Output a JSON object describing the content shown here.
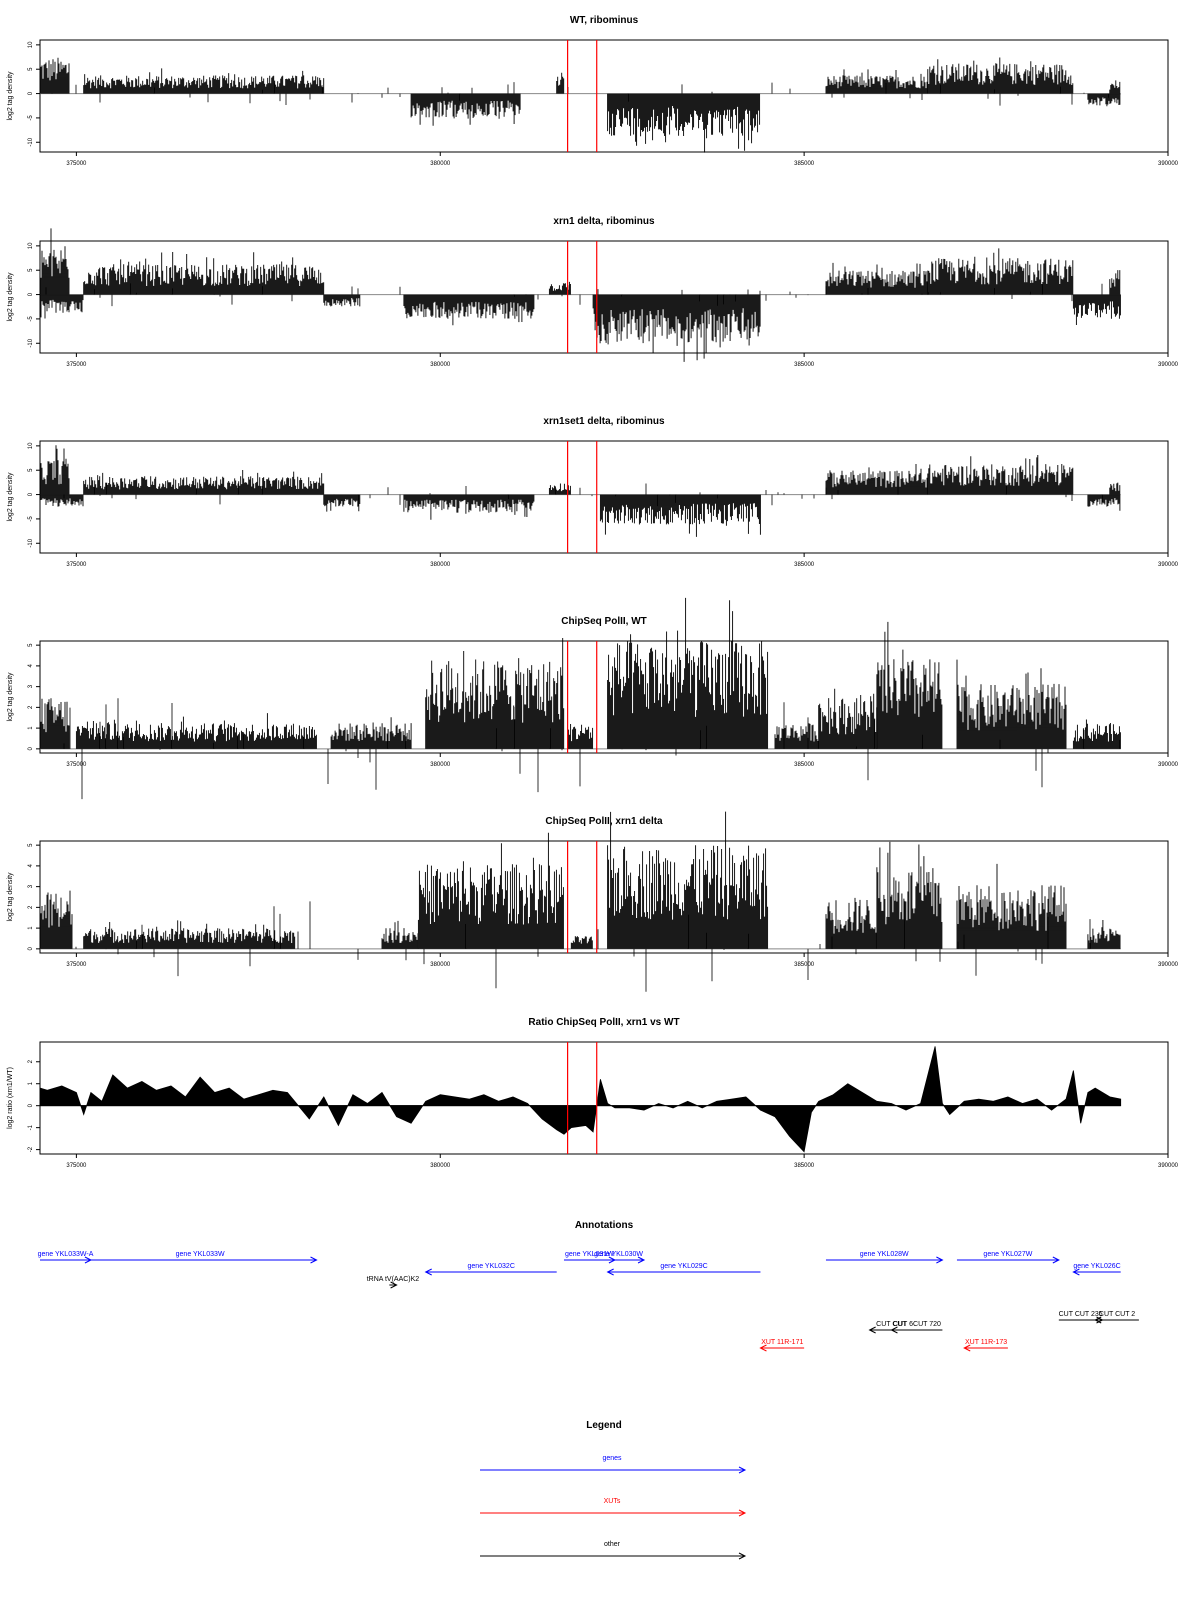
{
  "x_tick_labels": [
    "375000",
    "380000",
    "385000",
    "390000"
  ],
  "chart_data": [
    {
      "type": "bar",
      "title": "WT, ribominus",
      "ylabel": "log2 tag density",
      "xlim": [
        374500,
        390000
      ],
      "ylim": [
        -12,
        11
      ],
      "y_ticks": [
        "-10",
        "-5",
        "0",
        "5",
        "10"
      ],
      "marker_lines_x": [
        381750,
        382150
      ],
      "profile": {
        "positive": [
          {
            "from": 374500,
            "to": 374900,
            "value": 6
          },
          {
            "from": 375100,
            "to": 378400,
            "value": 3
          },
          {
            "from": 381600,
            "to": 381700,
            "value": 3
          },
          {
            "from": 385300,
            "to": 386700,
            "value": 3
          },
          {
            "from": 386700,
            "to": 388700,
            "value": 5
          },
          {
            "from": 389200,
            "to": 389350,
            "value": 2
          }
        ],
        "negative": [
          {
            "from": 379600,
            "to": 381100,
            "value": -4
          },
          {
            "from": 382300,
            "to": 384400,
            "value": -7
          },
          {
            "from": 388900,
            "to": 389350,
            "value": -2
          }
        ]
      }
    },
    {
      "type": "bar",
      "title": "xrn1 delta, ribominus",
      "ylabel": "log2 tag density",
      "xlim": [
        374500,
        390000
      ],
      "ylim": [
        -12,
        11
      ],
      "y_ticks": [
        "-10",
        "-5",
        "0",
        "5",
        "10"
      ],
      "marker_lines_x": [
        381750,
        382150
      ],
      "profile": {
        "positive": [
          {
            "from": 374500,
            "to": 374900,
            "value": 8
          },
          {
            "from": 375100,
            "to": 378400,
            "value": 5
          },
          {
            "from": 381500,
            "to": 381800,
            "value": 2
          },
          {
            "from": 385300,
            "to": 386700,
            "value": 4
          },
          {
            "from": 386700,
            "to": 388700,
            "value": 6
          },
          {
            "from": 389200,
            "to": 389350,
            "value": 3
          }
        ],
        "negative": [
          {
            "from": 374500,
            "to": 375100,
            "value": -3
          },
          {
            "from": 378400,
            "to": 378900,
            "value": -2
          },
          {
            "from": 379500,
            "to": 381300,
            "value": -4
          },
          {
            "from": 382100,
            "to": 384400,
            "value": -8
          },
          {
            "from": 388700,
            "to": 389350,
            "value": -4
          }
        ]
      }
    },
    {
      "type": "bar",
      "title": "xrn1set1 delta, ribominus",
      "ylabel": "log2 tag density",
      "xlim": [
        374500,
        390000
      ],
      "ylim": [
        -12,
        11
      ],
      "y_ticks": [
        "-10",
        "-5",
        "0",
        "5",
        "10"
      ],
      "marker_lines_x": [
        381750,
        382150
      ],
      "profile": {
        "positive": [
          {
            "from": 374500,
            "to": 374900,
            "value": 6
          },
          {
            "from": 375100,
            "to": 378400,
            "value": 3
          },
          {
            "from": 381500,
            "to": 381800,
            "value": 2
          },
          {
            "from": 385300,
            "to": 386700,
            "value": 4
          },
          {
            "from": 386700,
            "to": 388700,
            "value": 5
          },
          {
            "from": 389200,
            "to": 389350,
            "value": 2
          }
        ],
        "negative": [
          {
            "from": 374500,
            "to": 375100,
            "value": -2
          },
          {
            "from": 378400,
            "to": 378900,
            "value": -2
          },
          {
            "from": 379500,
            "to": 381300,
            "value": -3
          },
          {
            "from": 382200,
            "to": 384400,
            "value": -5
          },
          {
            "from": 388900,
            "to": 389350,
            "value": -2
          }
        ]
      }
    },
    {
      "type": "bar",
      "title": "ChipSeq PolII, WT",
      "ylabel": "log2 tag density",
      "xlim": [
        374500,
        390000
      ],
      "ylim": [
        -0.2,
        5.2
      ],
      "y_ticks": [
        "0",
        "1",
        "2",
        "3",
        "4",
        "5"
      ],
      "marker_lines_x": [
        381750,
        382150
      ],
      "profile": {
        "positive": [
          {
            "from": 374500,
            "to": 374900,
            "value": 2
          },
          {
            "from": 375000,
            "to": 378300,
            "value": 1
          },
          {
            "from": 378500,
            "to": 379600,
            "value": 1
          },
          {
            "from": 379800,
            "to": 381700,
            "value": 3.5
          },
          {
            "from": 381750,
            "to": 382100,
            "value": 1
          },
          {
            "from": 382300,
            "to": 384500,
            "value": 4.2
          },
          {
            "from": 384600,
            "to": 385200,
            "value": 1
          },
          {
            "from": 385200,
            "to": 386000,
            "value": 2
          },
          {
            "from": 386000,
            "to": 386900,
            "value": 3.5
          },
          {
            "from": 387100,
            "to": 388600,
            "value": 2.5
          },
          {
            "from": 388700,
            "to": 389350,
            "value": 1
          }
        ],
        "negative": []
      }
    },
    {
      "type": "bar",
      "title": "ChipSeq PolII, xrn1 delta",
      "ylabel": "log2 tag density",
      "xlim": [
        374500,
        390000
      ],
      "ylim": [
        -0.2,
        5.2
      ],
      "y_ticks": [
        "0",
        "1",
        "2",
        "3",
        "4",
        "5"
      ],
      "marker_lines_x": [
        381750,
        382150
      ],
      "profile": {
        "positive": [
          {
            "from": 374500,
            "to": 374950,
            "value": 2.3
          },
          {
            "from": 375100,
            "to": 378000,
            "value": 0.8
          },
          {
            "from": 379200,
            "to": 379700,
            "value": 0.8
          },
          {
            "from": 379700,
            "to": 381700,
            "value": 3.3
          },
          {
            "from": 381800,
            "to": 382100,
            "value": 0.5
          },
          {
            "from": 382300,
            "to": 384500,
            "value": 4
          },
          {
            "from": 385300,
            "to": 386000,
            "value": 2
          },
          {
            "from": 386000,
            "to": 386900,
            "value": 3.2
          },
          {
            "from": 387100,
            "to": 388600,
            "value": 2.5
          },
          {
            "from": 388900,
            "to": 389350,
            "value": 0.8
          }
        ],
        "negative": []
      }
    },
    {
      "type": "area",
      "title": "Ratio ChipSeq PolII, xrn1 vs WT",
      "ylabel": "log2 ratio (xrn1/WT)",
      "xlim": [
        374500,
        390000
      ],
      "ylim": [
        -2.2,
        2.9
      ],
      "y_ticks": [
        "-2",
        "-1",
        "0",
        "1",
        "2"
      ],
      "marker_lines_x": [
        381750,
        382150
      ],
      "x": [
        374500,
        374600,
        374800,
        375000,
        375100,
        375200,
        375350,
        375500,
        375700,
        375900,
        376100,
        376300,
        376500,
        376700,
        376900,
        377100,
        377300,
        377500,
        377700,
        377900,
        378200,
        378400,
        378600,
        378800,
        379000,
        379200,
        379400,
        379600,
        379800,
        380000,
        380200,
        380400,
        380600,
        380800,
        381000,
        381200,
        381400,
        381600,
        381700,
        381800,
        382000,
        382100,
        382200,
        382300,
        382400,
        382600,
        382800,
        383000,
        383200,
        383400,
        383600,
        383800,
        384000,
        384200,
        384400,
        384600,
        384800,
        385000,
        385100,
        385200,
        385400,
        385600,
        385800,
        386000,
        386200,
        386400,
        386600,
        386800,
        386900,
        387000,
        387200,
        387400,
        387600,
        387800,
        388000,
        388200,
        388400,
        388600,
        388700,
        388800,
        388900,
        389000,
        389200,
        389350
      ],
      "values": [
        0.8,
        0.7,
        0.9,
        0.6,
        -0.4,
        0.6,
        0.2,
        1.4,
        0.8,
        1.1,
        0.7,
        0.9,
        0.4,
        1.3,
        0.6,
        0.8,
        0.3,
        0.5,
        0.7,
        0.6,
        -0.6,
        0.4,
        -0.9,
        0.5,
        0.1,
        0.6,
        -0.5,
        -0.8,
        0.2,
        0.5,
        0.4,
        0.3,
        0.5,
        0.2,
        0.4,
        0.1,
        -0.6,
        -1.1,
        -1.3,
        -1.0,
        -0.9,
        -1.2,
        1.2,
        0.1,
        -0.1,
        -0.1,
        -0.2,
        0.1,
        -0.1,
        0.2,
        -0.1,
        0.2,
        0.3,
        0.4,
        -0.2,
        -0.5,
        -1.4,
        -2.1,
        -0.3,
        0.2,
        0.5,
        1.0,
        0.6,
        0.2,
        0.1,
        -0.2,
        0.1,
        2.7,
        0.1,
        -0.4,
        0.2,
        0.3,
        0.2,
        0.4,
        0.1,
        0.3,
        -0.2,
        0.3,
        1.6,
        -0.8,
        0.6,
        0.8,
        0.4,
        0.3
      ]
    }
  ],
  "annotations": {
    "title": "Annotations",
    "items": [
      {
        "label": "gene YKL033W-A",
        "from": 374500,
        "to": 375200,
        "strand": "+",
        "color": "#0000ff",
        "row": 0
      },
      {
        "label": "gene YKL033W",
        "from": 375100,
        "to": 378300,
        "strand": "+",
        "color": "#0000ff",
        "row": 0
      },
      {
        "label": "gene YKL032C",
        "from": 379800,
        "to": 381600,
        "strand": "-",
        "color": "#0000ff",
        "row": 1
      },
      {
        "label": "gene YKL031W",
        "from": 381700,
        "to": 382400,
        "strand": "+",
        "color": "#0000ff",
        "row": 0
      },
      {
        "label": "gene YKL030W",
        "from": 382100,
        "to": 382800,
        "strand": "+",
        "color": "#0000ff",
        "row": 0
      },
      {
        "label": "gene YKL029C",
        "from": 382300,
        "to": 384400,
        "strand": "-",
        "color": "#0000ff",
        "row": 1
      },
      {
        "label": "gene YKL028W",
        "from": 385300,
        "to": 386900,
        "strand": "+",
        "color": "#0000ff",
        "row": 0
      },
      {
        "label": "gene YKL027W",
        "from": 387100,
        "to": 388500,
        "strand": "+",
        "color": "#0000ff",
        "row": 0
      },
      {
        "label": "gene YKL026C",
        "from": 388700,
        "to": 389350,
        "strand": "-",
        "color": "#0000ff",
        "row": 1
      },
      {
        "label": "tRNA tV(AAC)K2",
        "from": 379300,
        "to": 379400,
        "strand": "+",
        "color": "#000000",
        "row": 2
      },
      {
        "label": "CUT CUT",
        "from": 385900,
        "to": 386500,
        "strand": "-",
        "color": "#000000",
        "row": 3
      },
      {
        "label": "CUT 6CUT 720",
        "from": 386200,
        "to": 386900,
        "strand": "-",
        "color": "#000000",
        "row": 3
      },
      {
        "label": "CUT CUT 235",
        "from": 388500,
        "to": 389100,
        "strand": "+",
        "color": "#000000",
        "row": 4
      },
      {
        "label": "CUT CUT 2",
        "from": 389000,
        "to": 389600,
        "strand": "-",
        "color": "#000000",
        "row": 4
      },
      {
        "label": "XUT 11R-171",
        "from": 384400,
        "to": 385000,
        "strand": "-",
        "color": "#ff0000",
        "row": 5
      },
      {
        "label": "XUT 11R-173",
        "from": 387200,
        "to": 387800,
        "strand": "-",
        "color": "#ff0000",
        "row": 5
      }
    ]
  },
  "legend": {
    "title": "Legend",
    "items": [
      {
        "label": "genes",
        "color": "#0000ff"
      },
      {
        "label": "XUTs",
        "color": "#ff0000"
      },
      {
        "label": "other",
        "color": "#000000"
      }
    ]
  }
}
